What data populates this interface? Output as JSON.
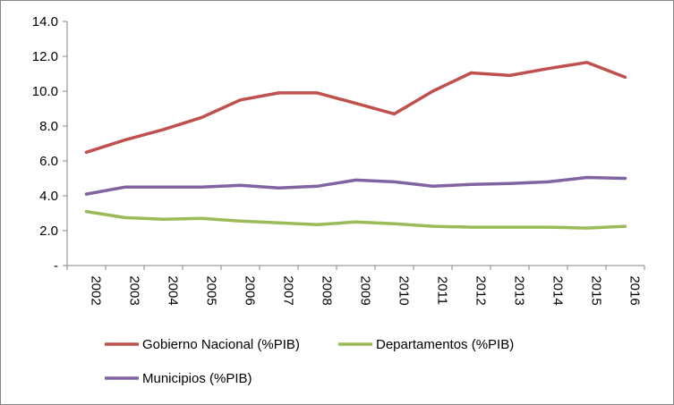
{
  "chart_data": {
    "type": "line",
    "categories": [
      "2002",
      "2003",
      "2004",
      "2005",
      "2006",
      "2007",
      "2008",
      "2009",
      "2010",
      "2011",
      "2012",
      "2013",
      "2014",
      "2015",
      "2016"
    ],
    "series": [
      {
        "name": "Gobierno Nacional (%PIB)",
        "color": "#c0504d",
        "values": [
          6.5,
          7.2,
          7.8,
          8.5,
          9.5,
          9.9,
          9.9,
          9.3,
          8.7,
          10.0,
          11.05,
          10.9,
          11.3,
          11.65,
          10.8
        ]
      },
      {
        "name": "Departamentos (%PIB)",
        "color": "#9bbb59",
        "values": [
          3.1,
          2.75,
          2.65,
          2.7,
          2.55,
          2.45,
          2.35,
          2.5,
          2.4,
          2.25,
          2.2,
          2.2,
          2.2,
          2.15,
          2.25
        ]
      },
      {
        "name": "Municipios (%PIB)",
        "color": "#8064a2",
        "values": [
          4.1,
          4.5,
          4.5,
          4.5,
          4.6,
          4.45,
          4.55,
          4.9,
          4.8,
          4.55,
          4.65,
          4.7,
          4.8,
          5.05,
          5.0
        ]
      }
    ],
    "y_ticks": [
      "-",
      "2.0",
      "4.0",
      "6.0",
      "8.0",
      "10.0",
      "12.0",
      "14.0"
    ],
    "ylim": [
      0,
      14
    ],
    "grid": false,
    "legend_position": "bottom",
    "title": "",
    "xlabel": "",
    "ylabel": ""
  }
}
